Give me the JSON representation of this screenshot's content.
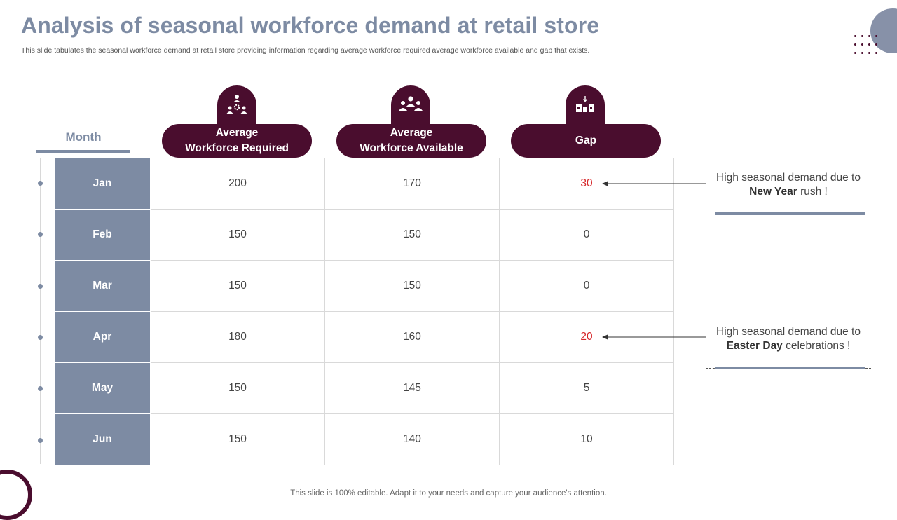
{
  "title": "Analysis of seasonal workforce demand at retail store",
  "subtitle": "This slide tabulates the seasonal workforce demand at retail store providing information regarding  average workforce required average workforce available and gap that exists.",
  "table": {
    "month_header": "Month",
    "columns": [
      {
        "label_line1": "Average",
        "label_line2": "Workforce Required",
        "icon": "team-settings-icon"
      },
      {
        "label_line1": "Average",
        "label_line2": "Workforce Available",
        "icon": "group-icon"
      },
      {
        "label_line1": "Gap",
        "label_line2": "",
        "icon": "shopping-gap-icon"
      }
    ],
    "rows": [
      {
        "month": "Jan",
        "required": "200",
        "available": "170",
        "gap": "30"
      },
      {
        "month": "Feb",
        "required": "150",
        "available": "150",
        "gap": "0"
      },
      {
        "month": "Mar",
        "required": "150",
        "available": "150",
        "gap": "0"
      },
      {
        "month": "Apr",
        "required": "180",
        "available": "160",
        "gap": "20"
      },
      {
        "month": "May",
        "required": "150",
        "available": "145",
        "gap": "5"
      },
      {
        "month": "Jun",
        "required": "150",
        "available": "140",
        "gap": "10"
      }
    ]
  },
  "notes": [
    {
      "before": "High seasonal demand due to ",
      "bold": "New Year",
      "after": " rush  !"
    },
    {
      "before": "High seasonal demand due to ",
      "bold": "Easter Day",
      "after": " celebrations !"
    }
  ],
  "footer": "This slide is 100% editable. Adapt it to your needs and capture your audience's attention.",
  "colors": {
    "primary": "#4a0d2e",
    "slate": "#7d8ba3",
    "highlight": "#d6272a"
  }
}
